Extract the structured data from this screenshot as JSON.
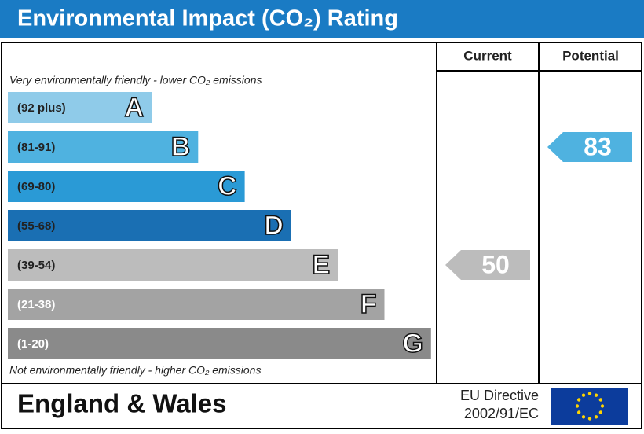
{
  "header": {
    "title": "Environmental Impact (CO₂) Rating"
  },
  "columns": {
    "current": "Current",
    "potential": "Potential"
  },
  "top_note": "Very environmentally friendly - lower CO₂ emissions",
  "bottom_note": "Not environmentally friendly - higher CO₂ emissions",
  "bands": [
    {
      "range": "(92 plus)",
      "letter": "A",
      "color": "#8fcbe9",
      "text_color": "#222"
    },
    {
      "range": "(81-91)",
      "letter": "B",
      "color": "#4fb2e0",
      "text_color": "#222"
    },
    {
      "range": "(69-80)",
      "letter": "C",
      "color": "#2a9ad6",
      "text_color": "#222"
    },
    {
      "range": "(55-68)",
      "letter": "D",
      "color": "#1a6fb3",
      "text_color": "#222"
    },
    {
      "range": "(39-54)",
      "letter": "E",
      "color": "#bcbcbc",
      "text_color": "#222"
    },
    {
      "range": "(21-38)",
      "letter": "F",
      "color": "#a3a3a3",
      "text_color": "#fff"
    },
    {
      "range": "(1-20)",
      "letter": "G",
      "color": "#8a8a8a",
      "text_color": "#fff"
    }
  ],
  "ratings": {
    "current": 50,
    "potential": 83
  },
  "footer": {
    "region": "England & Wales",
    "directive_line1": "EU Directive",
    "directive_line2": "2002/91/EC"
  }
}
